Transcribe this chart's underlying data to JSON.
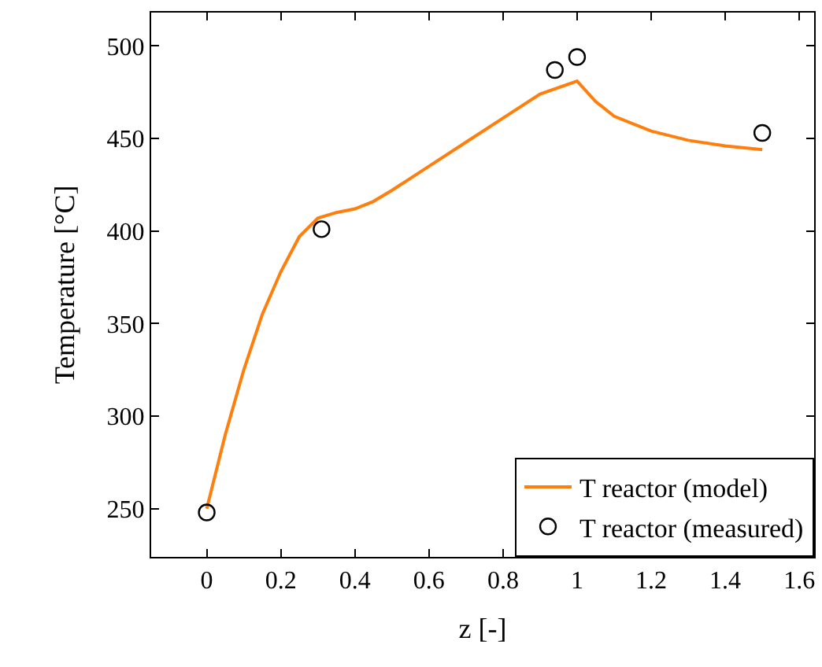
{
  "chart_data": {
    "type": "line",
    "xlabel": "z [-]",
    "ylabel": "Temperature [°C]",
    "xlim": [
      -0.15,
      1.64
    ],
    "ylim": [
      224,
      518
    ],
    "xticks": [
      0,
      0.2,
      0.4,
      0.6,
      0.8,
      1,
      1.2,
      1.4,
      1.6
    ],
    "yticks": [
      250,
      300,
      350,
      400,
      450,
      500
    ],
    "legend": "bottom right",
    "series": [
      {
        "name": "T reactor (model)",
        "color": "#ff7f0e",
        "marker": "none",
        "x": [
          0,
          0.05,
          0.1,
          0.15,
          0.2,
          0.25,
          0.3,
          0.35,
          0.4,
          0.45,
          0.5,
          0.6,
          0.7,
          0.8,
          0.9,
          1.0,
          1.05,
          1.1,
          1.2,
          1.3,
          1.4,
          1.5
        ],
        "values": [
          250,
          290,
          325,
          355,
          378,
          397,
          407,
          410,
          412,
          416,
          422,
          435,
          448,
          461,
          474,
          481,
          470,
          462,
          454,
          449,
          446,
          444
        ]
      },
      {
        "name": "T reactor (measured)",
        "type": "scatter",
        "color": "#000000",
        "marker": "circle",
        "x": [
          0,
          0.31,
          0.94,
          1.0,
          1.5
        ],
        "values": [
          248,
          401,
          487,
          494,
          453
        ]
      }
    ]
  }
}
